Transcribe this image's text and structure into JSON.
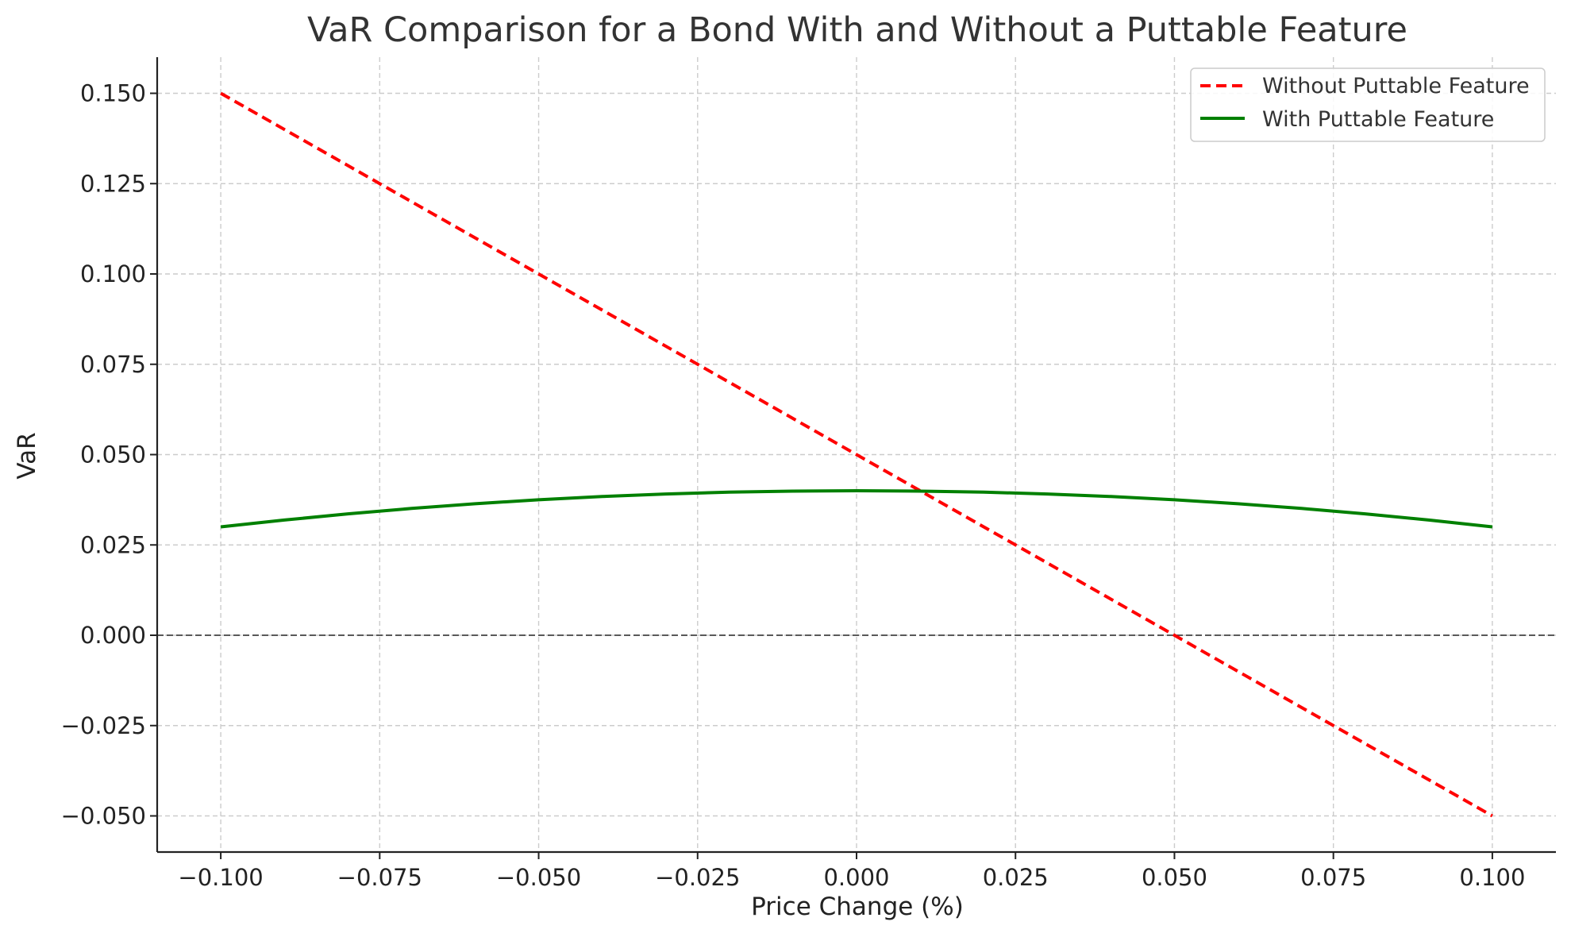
{
  "chart_data": {
    "type": "line",
    "title": "VaR Comparison for a Bond With and Without a Puttable Feature",
    "xlabel": "Price Change (%)",
    "ylabel": "VaR",
    "xlim": [
      -0.11,
      0.11
    ],
    "ylim": [
      -0.06,
      0.16
    ],
    "xticks": [
      -0.1,
      -0.075,
      -0.05,
      -0.025,
      0.0,
      0.025,
      0.05,
      0.075,
      0.1
    ],
    "xtick_labels": [
      "−0.100",
      "−0.075",
      "−0.050",
      "−0.025",
      "0.000",
      "0.025",
      "0.050",
      "0.075",
      "0.100"
    ],
    "yticks": [
      -0.05,
      -0.025,
      0.0,
      0.025,
      0.05,
      0.075,
      0.1,
      0.125,
      0.15
    ],
    "ytick_labels": [
      "−0.050",
      "−0.025",
      "0.000",
      "0.025",
      "0.050",
      "0.075",
      "0.100",
      "0.125",
      "0.150"
    ],
    "grid": true,
    "legend_position": "top-right",
    "reference_line": {
      "y": 0.0,
      "style": "dashed",
      "color": "#444444"
    },
    "series": [
      {
        "name": "Without Puttable Feature",
        "color": "#ff0000",
        "style": "dashed",
        "x": [
          -0.1,
          0.1
        ],
        "y": [
          0.15,
          -0.05
        ]
      },
      {
        "name": "With Puttable Feature",
        "color": "#008000",
        "style": "solid",
        "x": [
          -0.1,
          -0.09,
          -0.08,
          -0.07,
          -0.06,
          -0.05,
          -0.04,
          -0.03,
          -0.02,
          -0.01,
          0.0,
          0.01,
          0.02,
          0.03,
          0.04,
          0.05,
          0.06,
          0.07,
          0.08,
          0.09,
          0.1
        ],
        "y": [
          0.03,
          0.0319,
          0.0336,
          0.0351,
          0.0364,
          0.0375,
          0.0384,
          0.0391,
          0.0396,
          0.0399,
          0.04,
          0.0399,
          0.0396,
          0.0391,
          0.0384,
          0.0375,
          0.0364,
          0.0351,
          0.0336,
          0.0319,
          0.03
        ]
      }
    ]
  }
}
